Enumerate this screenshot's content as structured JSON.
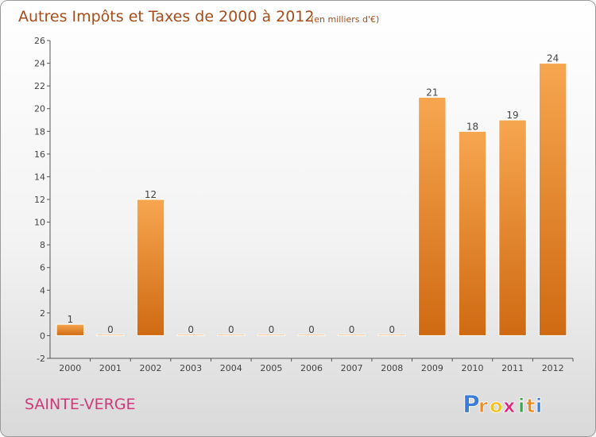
{
  "chart_data": {
    "type": "bar",
    "title": "Autres Impôts et Taxes de 2000 à 2012",
    "subtitle": "(en milliers d'€)",
    "categories": [
      "2000",
      "2001",
      "2002",
      "2003",
      "2004",
      "2005",
      "2006",
      "2007",
      "2008",
      "2009",
      "2010",
      "2011",
      "2012"
    ],
    "values": [
      1,
      0,
      12,
      0,
      0,
      0,
      0,
      0,
      0,
      21,
      18,
      19,
      24
    ],
    "value_labels": [
      "1",
      "0",
      "12",
      "0",
      "0",
      "0",
      "0",
      "0",
      "0",
      "21",
      "18",
      "19",
      "24"
    ],
    "ylim": [
      -2,
      26
    ],
    "yticks": [
      -2,
      0,
      2,
      4,
      6,
      8,
      10,
      12,
      14,
      16,
      18,
      20,
      22,
      24,
      26
    ],
    "ytick_labels": [
      "-2",
      "0",
      "2",
      "4",
      "6",
      "8",
      "10",
      "12",
      "14",
      "16",
      "18",
      "20",
      "22",
      "24",
      "26"
    ],
    "grid": false,
    "bar_color": "#f0902f",
    "xlabel": "",
    "ylabel": ""
  },
  "location": "SAINTE-VERGE",
  "brand": {
    "letters": [
      "P",
      "r",
      "o",
      "x",
      "i",
      "t",
      "i"
    ],
    "colors": [
      "#3b7dd8",
      "#f08a1d",
      "#f2c21b",
      "#e0257a",
      "#3aa64a",
      "#f08a1d",
      "#3b7dd8"
    ]
  }
}
